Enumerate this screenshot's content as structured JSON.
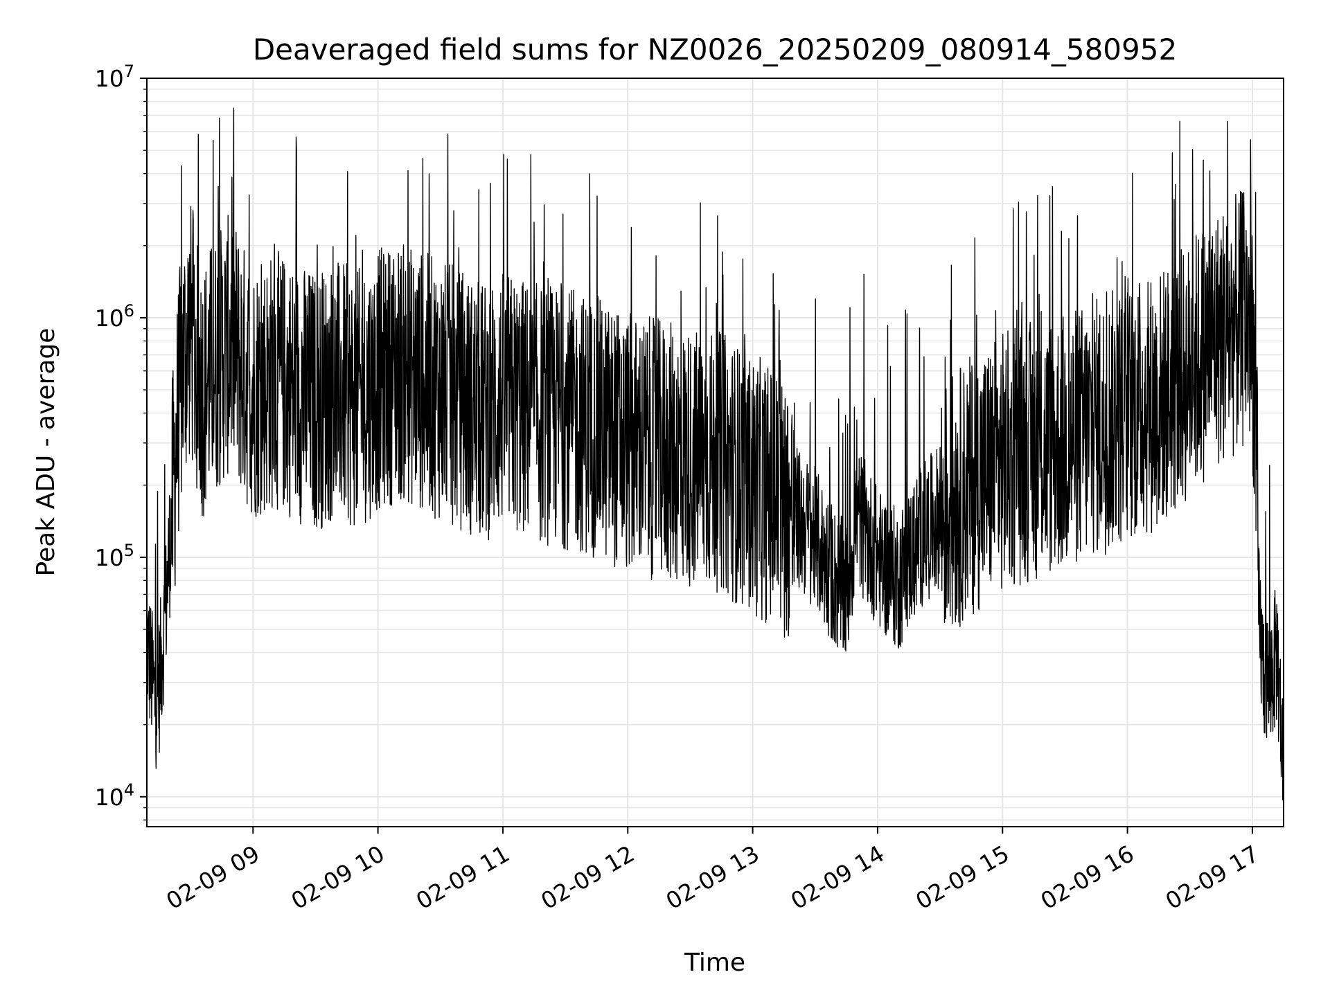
{
  "chart_data": {
    "type": "line",
    "title": "Deaveraged field sums for NZ0026_20250209_080914_580952",
    "xlabel": "Time",
    "ylabel": "Peak ADU - average",
    "y_scale": "log",
    "ylim": [
      7500,
      10000000
    ],
    "xlim": [
      "2025-02-09 08:09",
      "2025-02-09 17:15"
    ],
    "grid": true,
    "line_color": "#000000",
    "grid_color": "#e6e6e6",
    "x_ticks": [
      "02-09 09",
      "02-09 10",
      "02-09 11",
      "02-09 12",
      "02-09 13",
      "02-09 14",
      "02-09 15",
      "02-09 16",
      "02-09 17"
    ],
    "x_tick_times": [
      "2025-02-09 09:00",
      "2025-02-09 10:00",
      "2025-02-09 11:00",
      "2025-02-09 12:00",
      "2025-02-09 13:00",
      "2025-02-09 14:00",
      "2025-02-09 15:00",
      "2025-02-09 16:00",
      "2025-02-09 17:00"
    ],
    "y_ticks": [
      {
        "value": 10000,
        "base": "10",
        "exp": "4"
      },
      {
        "value": 100000,
        "base": "10",
        "exp": "5"
      },
      {
        "value": 1000000,
        "base": "10",
        "exp": "6"
      },
      {
        "value": 10000000,
        "base": "10",
        "exp": "7"
      }
    ],
    "series": [
      {
        "x": [
          "2025-02-09 08:09",
          "2025-02-09 08:13",
          "2025-02-09 08:15",
          "2025-02-09 08:18",
          "2025-02-09 08:21",
          "2025-02-09 08:24",
          "2025-02-09 08:27",
          "2025-02-09 08:30",
          "2025-02-09 08:33",
          "2025-02-09 08:36",
          "2025-02-09 08:40",
          "2025-02-09 08:45",
          "2025-02-09 08:50",
          "2025-02-09 08:55",
          "2025-02-09 09:00",
          "2025-02-09 09:10",
          "2025-02-09 09:20",
          "2025-02-09 09:30",
          "2025-02-09 09:40",
          "2025-02-09 09:50",
          "2025-02-09 10:00",
          "2025-02-09 10:10",
          "2025-02-09 10:20",
          "2025-02-09 10:30",
          "2025-02-09 10:40",
          "2025-02-09 10:50",
          "2025-02-09 11:00",
          "2025-02-09 11:15",
          "2025-02-09 11:30",
          "2025-02-09 11:45",
          "2025-02-09 12:00",
          "2025-02-09 12:15",
          "2025-02-09 12:30",
          "2025-02-09 12:45",
          "2025-02-09 13:00",
          "2025-02-09 13:10",
          "2025-02-09 13:20",
          "2025-02-09 13:30",
          "2025-02-09 13:40",
          "2025-02-09 13:45",
          "2025-02-09 13:50",
          "2025-02-09 14:00",
          "2025-02-09 14:10",
          "2025-02-09 14:20",
          "2025-02-09 14:30",
          "2025-02-09 14:45",
          "2025-02-09 15:00",
          "2025-02-09 15:15",
          "2025-02-09 15:30",
          "2025-02-09 15:45",
          "2025-02-09 16:00",
          "2025-02-09 16:15",
          "2025-02-09 16:30",
          "2025-02-09 16:40",
          "2025-02-09 16:50",
          "2025-02-09 16:57",
          "2025-02-09 17:00",
          "2025-02-09 17:02",
          "2025-02-09 17:03",
          "2025-02-09 17:05",
          "2025-02-09 17:08",
          "2025-02-09 17:12",
          "2025-02-09 17:15"
        ],
        "y": [
          45000,
          25000,
          30000,
          60000,
          150000,
          400000,
          700000,
          900000,
          600000,
          500000,
          600000,
          700000,
          800000,
          600000,
          500000,
          550000,
          500000,
          450000,
          500000,
          450000,
          550000,
          600000,
          550000,
          500000,
          450000,
          400000,
          450000,
          400000,
          380000,
          350000,
          300000,
          280000,
          260000,
          250000,
          200000,
          180000,
          150000,
          120000,
          80000,
          70000,
          150000,
          100000,
          80000,
          120000,
          150000,
          200000,
          250000,
          280000,
          300000,
          350000,
          400000,
          450000,
          600000,
          800000,
          900000,
          1000000,
          900000,
          300000,
          60000,
          35000,
          30000,
          40000,
          12000
        ]
      }
    ]
  }
}
